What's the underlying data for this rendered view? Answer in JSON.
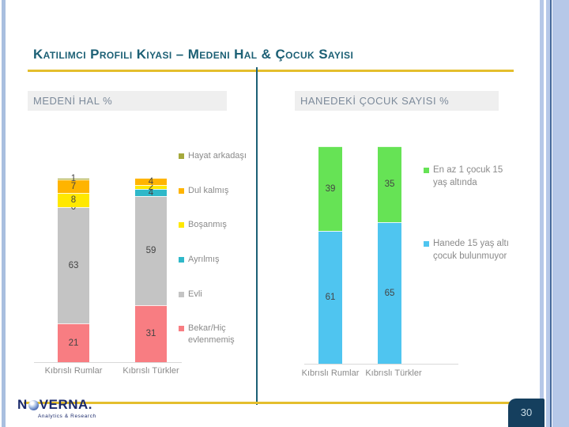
{
  "slide": {
    "title": "Katılımcı Profili Kıyası – Medeni Hal & Çocuk Sayısı",
    "page_number": "30",
    "logo": {
      "name_prefix": "N",
      "name_suffix": "VERNA.",
      "tagline": "Analytics & Research"
    },
    "accent_colors": {
      "gold": "#E4BE2D",
      "teal": "#1C6075",
      "navy": "#153F5E"
    }
  },
  "chart_data": [
    {
      "type": "bar",
      "stacked": true,
      "title": "MEDENİ HAL %",
      "categories": [
        "Kıbrıslı Rumlar",
        "Kıbrıslı Türkler"
      ],
      "series": [
        {
          "name": "Hayat arkadaşı",
          "color": "#A5A93C",
          "values": [
            1,
            0
          ],
          "show_labels": [
            true,
            false
          ]
        },
        {
          "name": "Dul kalmış",
          "color": "#FFB400",
          "values": [
            7,
            4
          ]
        },
        {
          "name": "Boşanmış",
          "color": "#FFE800",
          "values": [
            8,
            2
          ]
        },
        {
          "name": "Ayrılmış",
          "color": "#2FB8C9",
          "values": [
            0,
            4
          ]
        },
        {
          "name": "Evli",
          "color": "#C4C4C4",
          "values": [
            63,
            59
          ]
        },
        {
          "name": "Bekar/Hiç evlenmemiş",
          "color": "#F87D82",
          "values": [
            21,
            31
          ]
        }
      ],
      "ylim": [
        0,
        100
      ],
      "grid": false,
      "legend_position": "right"
    },
    {
      "type": "bar",
      "stacked": true,
      "title": "HANEDEKİ ÇOCUK SAYISI %",
      "categories": [
        "Kıbrıslı Rumlar",
        "Kıbrıslı Türkler"
      ],
      "series": [
        {
          "name": "En az 1 çocuk 15 yaş altında",
          "color": "#66E355",
          "values": [
            39,
            35
          ]
        },
        {
          "name": "Hanede 15 yaş altı çocuk bulunmuyor",
          "color": "#4FC5F0",
          "values": [
            61,
            65
          ]
        }
      ],
      "ylim": [
        0,
        100
      ],
      "grid": false,
      "legend_position": "right"
    }
  ]
}
